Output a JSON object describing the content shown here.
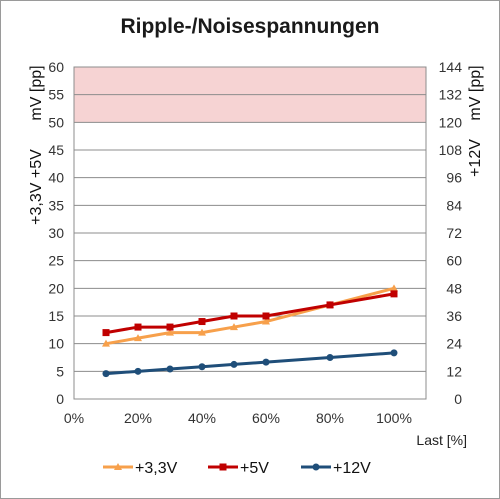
{
  "chart_data": {
    "type": "line",
    "title": "Ripple-/Noisespannungen",
    "xlabel": "Last [%]",
    "ylabel_left_top": "mV [pp]",
    "ylabel_left_bottom": "+3,3V +5V",
    "ylabel_right_top": "mV [pp]",
    "ylabel_right_bottom": "+12V",
    "x": [
      10,
      20,
      30,
      40,
      50,
      60,
      80,
      100
    ],
    "xlim": [
      0,
      110
    ],
    "x_ticks": [
      0,
      20,
      40,
      60,
      80,
      100
    ],
    "x_tick_labels": [
      "0%",
      "20%",
      "40%",
      "60%",
      "80%",
      "100%"
    ],
    "ylim_left": [
      0,
      60
    ],
    "y_ticks_left": [
      0,
      5,
      10,
      15,
      20,
      25,
      30,
      35,
      40,
      45,
      50,
      55,
      60
    ],
    "ylim_right": [
      0,
      144
    ],
    "y_ticks_right": [
      0,
      12,
      24,
      36,
      48,
      60,
      72,
      84,
      96,
      108,
      120,
      132,
      144
    ],
    "limit_band": {
      "from": 50,
      "to": 60,
      "color": "#f6d3d3"
    },
    "grid": true,
    "legend_position": "bottom",
    "series": [
      {
        "name": "+3,3V",
        "axis": "left",
        "color": "#f7a04b",
        "marker": "triangle",
        "values": [
          10,
          11,
          12,
          12,
          13,
          14,
          17,
          20
        ]
      },
      {
        "name": "+5V",
        "axis": "left",
        "color": "#c00000",
        "marker": "square",
        "values": [
          12,
          13,
          13,
          14,
          15,
          15,
          17,
          19
        ]
      },
      {
        "name": "+12V",
        "axis": "right",
        "color": "#1f4e79",
        "marker": "circle",
        "values": [
          11,
          12,
          13,
          14,
          15,
          16,
          18,
          20
        ]
      }
    ]
  }
}
